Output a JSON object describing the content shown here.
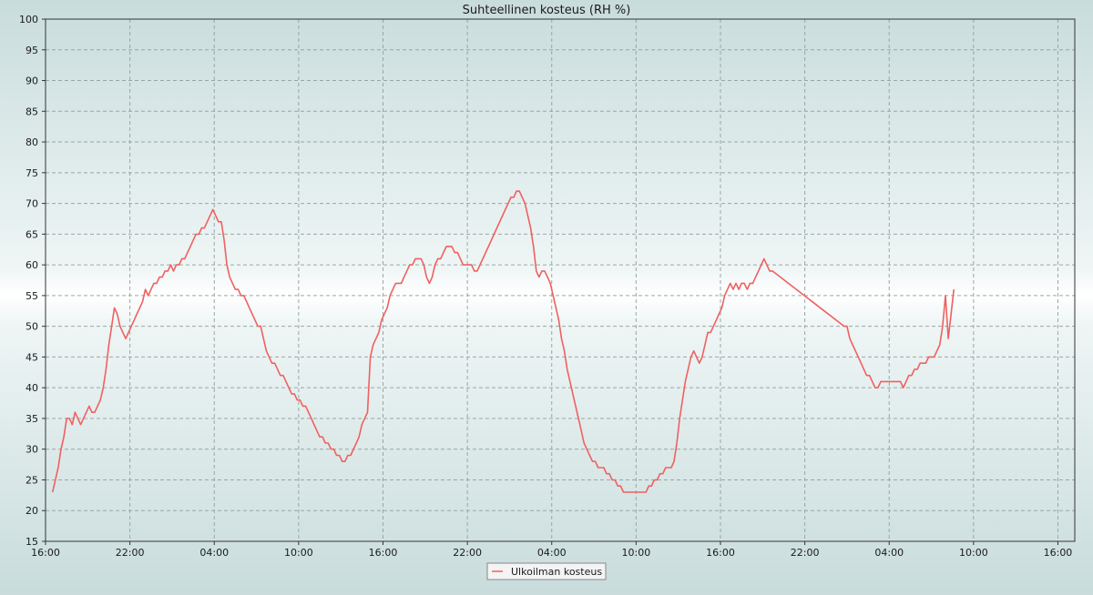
{
  "chart_data": {
    "type": "line",
    "title": "Suhteellinen kosteus (RH %)",
    "xlabel": "",
    "ylabel": "",
    "ylim": [
      15,
      100
    ],
    "yticks": [
      15,
      20,
      25,
      30,
      35,
      40,
      45,
      50,
      55,
      60,
      65,
      70,
      75,
      80,
      85,
      90,
      95,
      100
    ],
    "x_unit": "hours since first tick (16:00)",
    "xlim": [
      0,
      73.2
    ],
    "xticks": [
      {
        "x": 0,
        "label": "16:00"
      },
      {
        "x": 6,
        "label": "22:00"
      },
      {
        "x": 12,
        "label": "04:00"
      },
      {
        "x": 18,
        "label": "10:00"
      },
      {
        "x": 24,
        "label": "16:00"
      },
      {
        "x": 30,
        "label": "22:00"
      },
      {
        "x": 36,
        "label": "04:00"
      },
      {
        "x": 42,
        "label": "10:00"
      },
      {
        "x": 48,
        "label": "16:00"
      },
      {
        "x": 54,
        "label": "22:00"
      },
      {
        "x": 60,
        "label": "04:00"
      },
      {
        "x": 66,
        "label": "10:00"
      },
      {
        "x": 72,
        "label": "16:00"
      }
    ],
    "grid": true,
    "legend_position": "bottom-center",
    "series": [
      {
        "name": "Ulkoilman kosteus",
        "color": "#f06060",
        "points": [
          [
            0.5,
            23
          ],
          [
            0.7,
            25
          ],
          [
            0.9,
            27
          ],
          [
            1.1,
            30
          ],
          [
            1.3,
            32
          ],
          [
            1.5,
            35
          ],
          [
            1.7,
            35
          ],
          [
            1.9,
            34
          ],
          [
            2.1,
            36
          ],
          [
            2.3,
            35
          ],
          [
            2.5,
            34
          ],
          [
            2.7,
            35
          ],
          [
            2.9,
            36
          ],
          [
            3.1,
            37
          ],
          [
            3.3,
            36
          ],
          [
            3.5,
            36
          ],
          [
            3.7,
            37
          ],
          [
            3.9,
            38
          ],
          [
            4.1,
            40
          ],
          [
            4.3,
            43
          ],
          [
            4.5,
            47
          ],
          [
            4.7,
            50
          ],
          [
            4.9,
            53
          ],
          [
            5.1,
            52
          ],
          [
            5.3,
            50
          ],
          [
            5.5,
            49
          ],
          [
            5.7,
            48
          ],
          [
            5.9,
            49
          ],
          [
            6.1,
            50
          ],
          [
            6.3,
            51
          ],
          [
            6.5,
            52
          ],
          [
            6.7,
            53
          ],
          [
            6.9,
            54
          ],
          [
            7.1,
            56
          ],
          [
            7.3,
            55
          ],
          [
            7.5,
            56
          ],
          [
            7.7,
            57
          ],
          [
            7.9,
            57
          ],
          [
            8.1,
            58
          ],
          [
            8.3,
            58
          ],
          [
            8.5,
            59
          ],
          [
            8.7,
            59
          ],
          [
            8.9,
            60
          ],
          [
            9.1,
            59
          ],
          [
            9.3,
            60
          ],
          [
            9.5,
            60
          ],
          [
            9.7,
            61
          ],
          [
            9.9,
            61
          ],
          [
            10.1,
            62
          ],
          [
            10.3,
            63
          ],
          [
            10.5,
            64
          ],
          [
            10.7,
            65
          ],
          [
            10.9,
            65
          ],
          [
            11.1,
            66
          ],
          [
            11.3,
            66
          ],
          [
            11.5,
            67
          ],
          [
            11.7,
            68
          ],
          [
            11.9,
            69
          ],
          [
            12.1,
            68
          ],
          [
            12.3,
            67
          ],
          [
            12.5,
            67
          ],
          [
            12.7,
            64
          ],
          [
            12.9,
            60
          ],
          [
            13.1,
            58
          ],
          [
            13.3,
            57
          ],
          [
            13.5,
            56
          ],
          [
            13.7,
            56
          ],
          [
            13.9,
            55
          ],
          [
            14.1,
            55
          ],
          [
            14.3,
            54
          ],
          [
            14.5,
            53
          ],
          [
            14.7,
            52
          ],
          [
            14.9,
            51
          ],
          [
            15.1,
            50
          ],
          [
            15.3,
            50
          ],
          [
            15.5,
            48
          ],
          [
            15.7,
            46
          ],
          [
            15.9,
            45
          ],
          [
            16.1,
            44
          ],
          [
            16.3,
            44
          ],
          [
            16.5,
            43
          ],
          [
            16.7,
            42
          ],
          [
            16.9,
            42
          ],
          [
            17.1,
            41
          ],
          [
            17.3,
            40
          ],
          [
            17.5,
            39
          ],
          [
            17.7,
            39
          ],
          [
            17.9,
            38
          ],
          [
            18.1,
            38
          ],
          [
            18.3,
            37
          ],
          [
            18.5,
            37
          ],
          [
            18.7,
            36
          ],
          [
            18.9,
            35
          ],
          [
            19.1,
            34
          ],
          [
            19.3,
            33
          ],
          [
            19.5,
            32
          ],
          [
            19.7,
            32
          ],
          [
            19.9,
            31
          ],
          [
            20.1,
            31
          ],
          [
            20.3,
            30
          ],
          [
            20.5,
            30
          ],
          [
            20.7,
            29
          ],
          [
            20.9,
            29
          ],
          [
            21.1,
            28
          ],
          [
            21.3,
            28
          ],
          [
            21.5,
            29
          ],
          [
            21.7,
            29
          ],
          [
            21.9,
            30
          ],
          [
            22.1,
            31
          ],
          [
            22.3,
            32
          ],
          [
            22.5,
            34
          ],
          [
            22.7,
            35
          ],
          [
            22.9,
            36
          ],
          [
            23.1,
            45
          ],
          [
            23.3,
            47
          ],
          [
            23.5,
            48
          ],
          [
            23.7,
            49
          ],
          [
            23.9,
            51
          ],
          [
            24.1,
            52
          ],
          [
            24.3,
            53
          ],
          [
            24.5,
            55
          ],
          [
            24.7,
            56
          ],
          [
            24.9,
            57
          ],
          [
            25.1,
            57
          ],
          [
            25.3,
            57
          ],
          [
            25.5,
            58
          ],
          [
            25.7,
            59
          ],
          [
            25.9,
            60
          ],
          [
            26.1,
            60
          ],
          [
            26.3,
            61
          ],
          [
            26.5,
            61
          ],
          [
            26.7,
            61
          ],
          [
            26.9,
            60
          ],
          [
            27.1,
            58
          ],
          [
            27.3,
            57
          ],
          [
            27.5,
            58
          ],
          [
            27.7,
            60
          ],
          [
            27.9,
            61
          ],
          [
            28.1,
            61
          ],
          [
            28.3,
            62
          ],
          [
            28.5,
            63
          ],
          [
            28.7,
            63
          ],
          [
            28.9,
            63
          ],
          [
            29.1,
            62
          ],
          [
            29.3,
            62
          ],
          [
            29.5,
            61
          ],
          [
            29.7,
            60
          ],
          [
            29.9,
            60
          ],
          [
            30.1,
            60
          ],
          [
            30.3,
            60
          ],
          [
            30.5,
            59
          ],
          [
            30.7,
            59
          ],
          [
            30.9,
            60
          ],
          [
            31.1,
            61
          ],
          [
            31.3,
            62
          ],
          [
            31.5,
            63
          ],
          [
            31.7,
            64
          ],
          [
            31.9,
            65
          ],
          [
            32.1,
            66
          ],
          [
            32.3,
            67
          ],
          [
            32.5,
            68
          ],
          [
            32.7,
            69
          ],
          [
            32.9,
            70
          ],
          [
            33.1,
            71
          ],
          [
            33.3,
            71
          ],
          [
            33.5,
            72
          ],
          [
            33.7,
            72
          ],
          [
            33.9,
            71
          ],
          [
            34.1,
            70
          ],
          [
            34.3,
            68
          ],
          [
            34.5,
            66
          ],
          [
            34.7,
            63
          ],
          [
            34.9,
            59
          ],
          [
            35.1,
            58
          ],
          [
            35.3,
            59
          ],
          [
            35.5,
            59
          ],
          [
            35.7,
            58
          ],
          [
            35.9,
            57
          ],
          [
            36.1,
            55
          ],
          [
            36.3,
            53
          ],
          [
            36.5,
            51
          ],
          [
            36.7,
            48
          ],
          [
            36.9,
            46
          ],
          [
            37.1,
            43
          ],
          [
            37.3,
            41
          ],
          [
            37.5,
            39
          ],
          [
            37.7,
            37
          ],
          [
            37.9,
            35
          ],
          [
            38.1,
            33
          ],
          [
            38.3,
            31
          ],
          [
            38.5,
            30
          ],
          [
            38.7,
            29
          ],
          [
            38.9,
            28
          ],
          [
            39.1,
            28
          ],
          [
            39.3,
            27
          ],
          [
            39.5,
            27
          ],
          [
            39.7,
            27
          ],
          [
            39.9,
            26
          ],
          [
            40.1,
            26
          ],
          [
            40.3,
            25
          ],
          [
            40.5,
            25
          ],
          [
            40.7,
            24
          ],
          [
            40.9,
            24
          ],
          [
            41.1,
            23
          ],
          [
            41.3,
            23
          ],
          [
            41.5,
            23
          ],
          [
            41.7,
            23
          ],
          [
            41.9,
            23
          ],
          [
            42.1,
            23
          ],
          [
            42.3,
            23
          ],
          [
            42.5,
            23
          ],
          [
            42.7,
            23
          ],
          [
            42.9,
            24
          ],
          [
            43.1,
            24
          ],
          [
            43.3,
            25
          ],
          [
            43.5,
            25
          ],
          [
            43.7,
            26
          ],
          [
            43.9,
            26
          ],
          [
            44.1,
            27
          ],
          [
            44.3,
            27
          ],
          [
            44.5,
            27
          ],
          [
            44.7,
            28
          ],
          [
            44.9,
            31
          ],
          [
            45.1,
            35
          ],
          [
            45.3,
            38
          ],
          [
            45.5,
            41
          ],
          [
            45.7,
            43
          ],
          [
            45.9,
            45
          ],
          [
            46.1,
            46
          ],
          [
            46.3,
            45
          ],
          [
            46.5,
            44
          ],
          [
            46.7,
            45
          ],
          [
            46.9,
            47
          ],
          [
            47.1,
            49
          ],
          [
            47.3,
            49
          ],
          [
            47.5,
            50
          ],
          [
            47.7,
            51
          ],
          [
            47.9,
            52
          ],
          [
            48.1,
            53
          ],
          [
            48.3,
            55
          ],
          [
            48.5,
            56
          ],
          [
            48.7,
            57
          ],
          [
            48.9,
            56
          ],
          [
            49.1,
            57
          ],
          [
            49.3,
            56
          ],
          [
            49.5,
            57
          ],
          [
            49.7,
            57
          ],
          [
            49.9,
            56
          ],
          [
            50.1,
            57
          ],
          [
            50.3,
            57
          ],
          [
            50.5,
            58
          ],
          [
            50.7,
            59
          ],
          [
            50.9,
            60
          ],
          [
            51.1,
            61
          ],
          [
            51.3,
            60
          ],
          [
            51.5,
            59
          ],
          [
            51.7,
            59
          ],
          [
            56.8,
            50
          ],
          [
            57.0,
            50
          ],
          [
            57.2,
            48
          ],
          [
            57.4,
            47
          ],
          [
            57.6,
            46
          ],
          [
            57.8,
            45
          ],
          [
            58.0,
            44
          ],
          [
            58.2,
            43
          ],
          [
            58.4,
            42
          ],
          [
            58.6,
            42
          ],
          [
            58.8,
            41
          ],
          [
            59.0,
            40
          ],
          [
            59.2,
            40
          ],
          [
            59.4,
            41
          ],
          [
            59.6,
            41
          ],
          [
            59.8,
            41
          ],
          [
            60.0,
            41
          ],
          [
            60.2,
            41
          ],
          [
            60.4,
            41
          ],
          [
            60.6,
            41
          ],
          [
            60.8,
            41
          ],
          [
            61.0,
            40
          ],
          [
            61.2,
            41
          ],
          [
            61.4,
            42
          ],
          [
            61.6,
            42
          ],
          [
            61.8,
            43
          ],
          [
            62.0,
            43
          ],
          [
            62.2,
            44
          ],
          [
            62.4,
            44
          ],
          [
            62.6,
            44
          ],
          [
            62.8,
            45
          ],
          [
            63.0,
            45
          ],
          [
            63.2,
            45
          ],
          [
            63.4,
            46
          ],
          [
            63.6,
            47
          ],
          [
            63.8,
            50
          ],
          [
            64.0,
            55
          ],
          [
            64.2,
            48
          ],
          [
            64.4,
            52
          ],
          [
            64.6,
            56
          ]
        ]
      }
    ]
  }
}
